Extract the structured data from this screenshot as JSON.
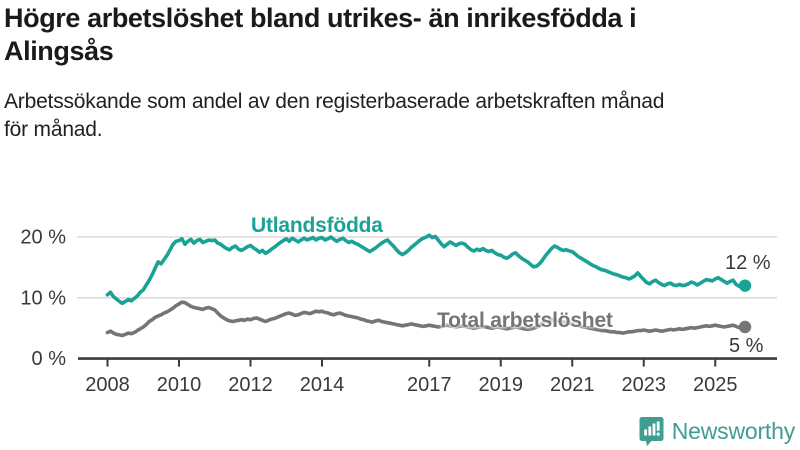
{
  "header": {
    "title_line1": "Högre arbetslöshet bland utrikes- än inrikesfödda i",
    "title_line2": "Alingsås",
    "subtitle_line1": "Arbetssökande som andel av den registerbaserade arbetskraften månad",
    "subtitle_line2": "för månad."
  },
  "footer": {
    "brand": "Newsworthy"
  },
  "theme": {
    "accent_teal": "#1AA296",
    "series_gray": "#757575",
    "axis_color": "#3C3C3C",
    "grid_color": "#DBDBDB",
    "tick_text_color": "#3A3A3A",
    "logo_teal": "#3F9D91"
  },
  "chart_data": {
    "type": "line",
    "title": "Högre arbetslöshet bland utrikes- än inrikesfödda i Alingsås",
    "subtitle": "Arbetssökande som andel av den registerbaserade arbetskraften månad för månad.",
    "frequency": "monthly",
    "x_start_year": 2008,
    "x_start_month": 1,
    "x_end_year": 2025,
    "x_end_month": 11,
    "ylim": [
      0,
      22
    ],
    "grid": "horizontal",
    "legend_position": "inline-labels",
    "x_ticks": [
      "2008",
      "2010",
      "2012",
      "2014",
      "2017",
      "2019",
      "2021",
      "2023",
      "2025"
    ],
    "x_tick_years": [
      2008,
      2010,
      2012,
      2014,
      2017,
      2019,
      2021,
      2023,
      2025
    ],
    "y_ticks": [
      {
        "value": 0,
        "label": "0 %"
      },
      {
        "value": 10,
        "label": "10 %"
      },
      {
        "value": 20,
        "label": "20 %"
      }
    ],
    "series": [
      {
        "name": "Utlandsfödda",
        "color": "#1AA296",
        "end_value": 12,
        "end_label": "12 %",
        "values": [
          10.5,
          10.9,
          10.2,
          9.8,
          9.4,
          9.1,
          9.4,
          9.7,
          9.5,
          9.9,
          10.3,
          10.9,
          11.3,
          12.1,
          12.9,
          13.8,
          14.9,
          15.9,
          15.6,
          16.3,
          17.0,
          17.9,
          18.8,
          19.3,
          19.4,
          19.7,
          18.8,
          19.3,
          19.6,
          19.0,
          19.4,
          19.6,
          19.1,
          19.3,
          19.5,
          19.4,
          19.5,
          19.0,
          18.8,
          18.4,
          18.1,
          17.9,
          18.3,
          18.5,
          18.0,
          17.8,
          18.1,
          18.4,
          18.6,
          18.2,
          17.9,
          17.5,
          17.8,
          17.3,
          17.6,
          18.0,
          18.3,
          18.7,
          19.1,
          19.4,
          19.7,
          19.3,
          19.8,
          19.5,
          19.2,
          19.5,
          19.8,
          19.5,
          19.7,
          19.9,
          19.5,
          19.8,
          19.9,
          19.5,
          19.7,
          20.0,
          19.6,
          19.3,
          19.6,
          19.8,
          19.4,
          19.1,
          19.3,
          19.0,
          18.8,
          18.5,
          18.2,
          17.9,
          17.6,
          17.9,
          18.2,
          18.6,
          19.0,
          19.3,
          19.5,
          19.0,
          18.5,
          17.9,
          17.4,
          17.1,
          17.4,
          17.8,
          18.3,
          18.7,
          19.1,
          19.5,
          19.8,
          20.0,
          20.3,
          19.9,
          20.1,
          19.5,
          18.9,
          18.4,
          18.8,
          19.2,
          18.9,
          18.6,
          18.9,
          19.0,
          18.8,
          18.3,
          17.9,
          17.7,
          18.0,
          17.8,
          18.1,
          17.8,
          17.6,
          17.8,
          17.4,
          17.1,
          17.0,
          16.7,
          16.5,
          16.8,
          17.2,
          17.4,
          16.9,
          16.5,
          16.2,
          15.9,
          15.5,
          15.1,
          15.2,
          15.6,
          16.2,
          16.9,
          17.5,
          18.1,
          18.5,
          18.3,
          18.0,
          17.8,
          17.9,
          17.7,
          17.6,
          17.2,
          16.8,
          16.5,
          16.2,
          15.9,
          15.6,
          15.3,
          15.1,
          14.8,
          14.6,
          14.5,
          14.3,
          14.1,
          13.9,
          13.8,
          13.6,
          13.4,
          13.3,
          13.1,
          13.3,
          13.6,
          14.1,
          13.5,
          13.0,
          12.5,
          12.3,
          12.7,
          12.9,
          12.5,
          12.2,
          12.0,
          12.3,
          12.4,
          12.1,
          12.0,
          12.2,
          12.0,
          12.1,
          12.3,
          12.6,
          12.4,
          12.1,
          12.4,
          12.7,
          13.0,
          12.9,
          12.8,
          13.1,
          13.3,
          13.0,
          12.7,
          12.4,
          12.7,
          12.9,
          12.2,
          11.9,
          11.8,
          12.0
        ]
      },
      {
        "name": "Total arbetslöshet",
        "color": "#757575",
        "end_value": 5,
        "end_label": "5 %",
        "values": [
          4.3,
          4.5,
          4.2,
          4.0,
          3.9,
          3.8,
          4.0,
          4.2,
          4.1,
          4.3,
          4.6,
          4.9,
          5.2,
          5.6,
          6.1,
          6.4,
          6.8,
          7.0,
          7.2,
          7.5,
          7.7,
          8.0,
          8.3,
          8.7,
          9.0,
          9.3,
          9.2,
          8.9,
          8.6,
          8.4,
          8.3,
          8.2,
          8.1,
          8.3,
          8.4,
          8.2,
          8.0,
          7.5,
          7.0,
          6.7,
          6.4,
          6.2,
          6.1,
          6.2,
          6.3,
          6.4,
          6.3,
          6.5,
          6.4,
          6.6,
          6.7,
          6.5,
          6.3,
          6.1,
          6.3,
          6.5,
          6.6,
          6.8,
          7.0,
          7.2,
          7.4,
          7.5,
          7.3,
          7.1,
          7.2,
          7.4,
          7.6,
          7.5,
          7.4,
          7.6,
          7.8,
          7.7,
          7.8,
          7.6,
          7.5,
          7.3,
          7.2,
          7.4,
          7.5,
          7.3,
          7.1,
          7.0,
          6.9,
          6.8,
          6.7,
          6.5,
          6.4,
          6.2,
          6.1,
          6.0,
          6.2,
          6.3,
          6.1,
          6.0,
          5.9,
          5.8,
          5.7,
          5.6,
          5.5,
          5.4,
          5.5,
          5.6,
          5.7,
          5.6,
          5.5,
          5.4,
          5.3,
          5.4,
          5.5,
          5.4,
          5.3,
          5.2,
          5.3,
          5.4,
          5.5,
          5.4,
          5.3,
          5.2,
          5.3,
          5.4,
          5.3,
          5.2,
          5.1,
          5.0,
          5.1,
          5.2,
          5.3,
          5.2,
          5.1,
          5.0,
          5.1,
          5.2,
          5.1,
          5.0,
          4.9,
          5.0,
          5.1,
          5.2,
          5.1,
          5.0,
          4.9,
          4.8,
          4.9,
          5.0,
          5.2,
          5.4,
          5.8,
          6.1,
          6.3,
          6.4,
          6.3,
          6.2,
          6.1,
          6.0,
          5.9,
          5.8,
          5.7,
          5.6,
          5.5,
          5.3,
          5.2,
          5.1,
          5.0,
          4.9,
          4.8,
          4.7,
          4.6,
          4.6,
          4.5,
          4.4,
          4.4,
          4.3,
          4.3,
          4.2,
          4.3,
          4.4,
          4.4,
          4.5,
          4.6,
          4.6,
          4.7,
          4.6,
          4.5,
          4.6,
          4.7,
          4.6,
          4.5,
          4.6,
          4.7,
          4.8,
          4.7,
          4.8,
          4.9,
          4.8,
          4.9,
          5.0,
          5.1,
          5.0,
          5.1,
          5.2,
          5.3,
          5.4,
          5.3,
          5.4,
          5.5,
          5.4,
          5.3,
          5.2,
          5.3,
          5.4,
          5.5,
          5.3,
          5.1,
          5.0,
          5.2
        ]
      }
    ]
  }
}
